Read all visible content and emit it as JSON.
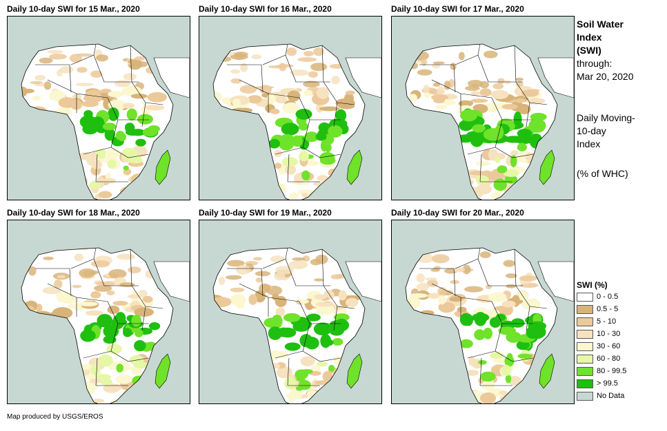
{
  "panels": [
    {
      "title": "Daily 10-day  SWI for 15 Mar., 2020",
      "wetness": 0.55
    },
    {
      "title": "Daily 10-day  SWI for 16 Mar., 2020",
      "wetness": 0.6
    },
    {
      "title": "Daily 10-day  SWI for 17 Mar., 2020",
      "wetness": 0.72
    },
    {
      "title": "Daily 10-day  SWI for 18 Mar., 2020",
      "wetness": 0.62
    },
    {
      "title": "Daily 10-day  SWI for 19 Mar., 2020",
      "wetness": 0.6
    },
    {
      "title": "Daily 10-day  SWI for 20 Mar., 2020",
      "wetness": 0.64
    }
  ],
  "side": {
    "title_lines": [
      "Soil Water",
      "Index",
      "(SWI)"
    ],
    "through_lines": [
      "through:",
      "Mar 20, 2020"
    ],
    "index_lines": [
      "Daily Moving-",
      "10-day",
      "Index"
    ],
    "unit": "(% of WHC)"
  },
  "legend": {
    "title": "SWI (%)",
    "items": [
      {
        "label": "0 - 0.5",
        "color": "#ffffff"
      },
      {
        "label": "0.5 - 5",
        "color": "#d8b47a"
      },
      {
        "label": "5 - 10",
        "color": "#ecc99a"
      },
      {
        "label": "10 - 30",
        "color": "#f7e2bf"
      },
      {
        "label": "30 - 60",
        "color": "#fbf7cf"
      },
      {
        "label": "60 - 80",
        "color": "#e6f7a6"
      },
      {
        "label": "80 - 99.5",
        "color": "#6fe22a"
      },
      {
        "label": "> 99.5",
        "color": "#1fbf10"
      },
      {
        "label": "No Data",
        "color": "#c7d8d3"
      }
    ]
  },
  "footer": "Map produced by USGS/EROS",
  "colors": {
    "ocean": "#c7d8d3",
    "land_dry": "#ffffff",
    "border": "#000000"
  }
}
